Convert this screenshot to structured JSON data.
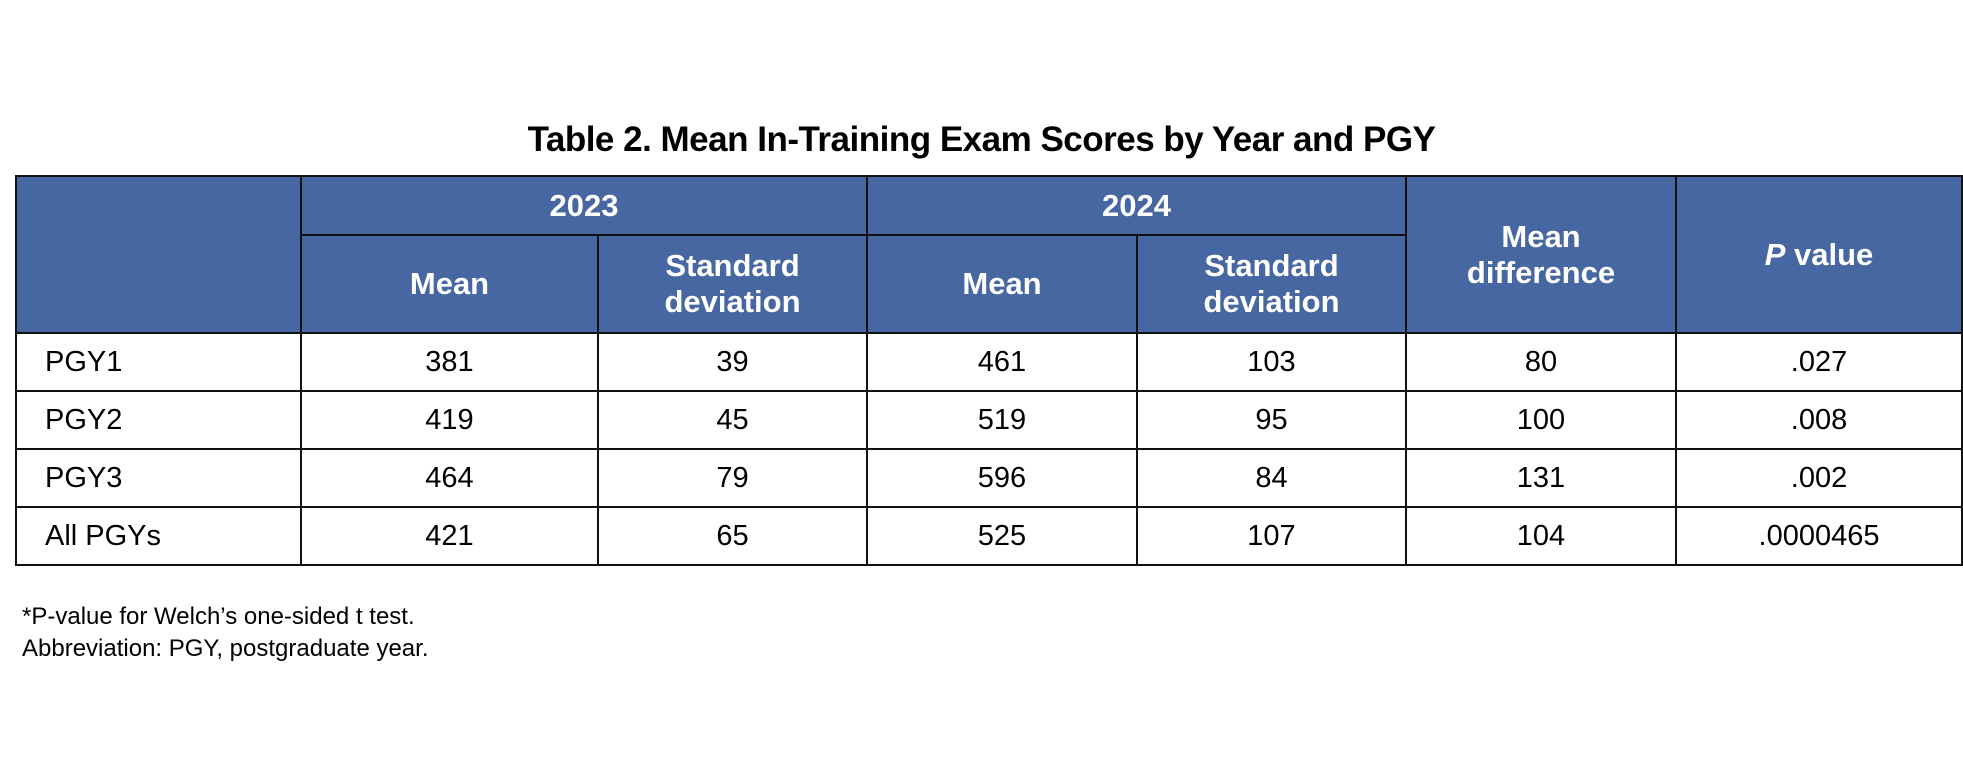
{
  "title": "Table 2. Mean In-Training Exam Scores by Year and PGY",
  "header": {
    "year_groups": [
      "2023",
      "2024"
    ],
    "sub_columns": [
      "Mean",
      "Standard deviation",
      "Mean",
      "Standard deviation"
    ],
    "mean_difference": "Mean difference",
    "p_value_italic": "P",
    "p_value_rest": " value"
  },
  "header_color": "#4667a1",
  "rows": [
    {
      "label": "PGY1",
      "values": [
        "381",
        "39",
        "461",
        "103",
        "80",
        ".027"
      ]
    },
    {
      "label": "PGY2",
      "values": [
        "419",
        "45",
        "519",
        "95",
        "100",
        ".008"
      ]
    },
    {
      "label": "PGY3",
      "values": [
        "464",
        "79",
        "596",
        "84",
        "131",
        ".002"
      ]
    },
    {
      "label": "All PGYs",
      "values": [
        "421",
        "65",
        "525",
        "107",
        "104",
        ".0000465"
      ]
    }
  ],
  "footnotes": [
    "*P-value for Welch’s one-sided t test.",
    "Abbreviation: PGY, postgraduate year."
  ]
}
